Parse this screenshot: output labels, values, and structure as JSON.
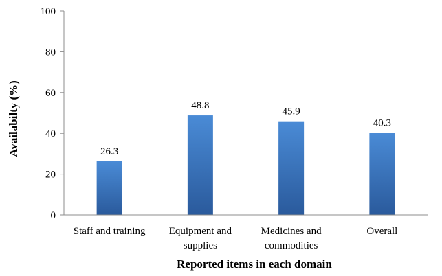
{
  "chart_data": {
    "type": "bar",
    "categories": [
      [
        "Staff and training"
      ],
      [
        "Equipment and",
        "supplies"
      ],
      [
        "Medicines and",
        "commodities"
      ],
      [
        "Overall"
      ]
    ],
    "values": [
      26.3,
      48.8,
      45.9,
      40.3
    ],
    "value_labels": [
      "26.3",
      "48.8",
      "45.9",
      "40.3"
    ],
    "xlabel": "Reported items in each domain",
    "ylabel": "Availabilty (%)",
    "ylim": [
      0,
      100
    ],
    "yticks": [
      0,
      20,
      40,
      60,
      80,
      100
    ],
    "ytick_labels": [
      "0",
      "20",
      "40",
      "60",
      "80",
      "100"
    ],
    "grid": false,
    "legend": "none",
    "colors": {
      "bar_top": "#4a8bd6",
      "bar_bottom": "#2a5a9c",
      "axis": "#8c8c8c"
    }
  }
}
